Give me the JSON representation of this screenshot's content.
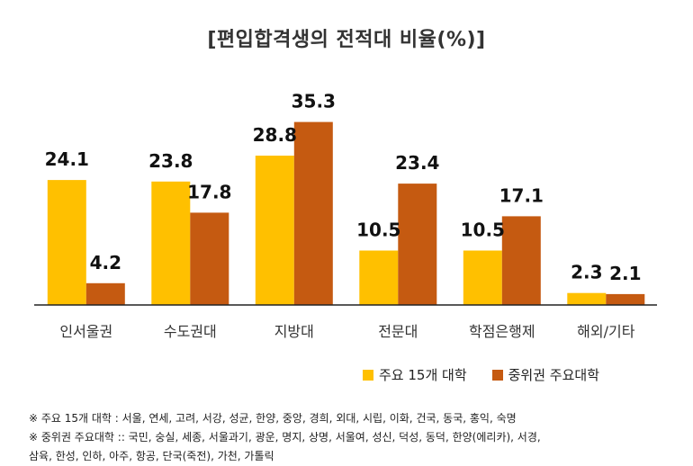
{
  "colors": {
    "series1": "#FFC000",
    "series2": "#C55A11",
    "axis": "#222222"
  },
  "chart_data": {
    "type": "bar",
    "title": "[편입합격생의 전적대 비율(%)]",
    "categories": [
      "인서울권",
      "수도권대",
      "지방대",
      "전문대",
      "학점은행제",
      "해외/기타"
    ],
    "series": [
      {
        "name": "주요 15개 대학",
        "values": [
          24.1,
          23.8,
          28.8,
          10.5,
          10.5,
          2.3
        ]
      },
      {
        "name": "중위권 주요대학",
        "values": [
          4.2,
          17.8,
          35.3,
          23.4,
          17.1,
          2.1
        ]
      }
    ],
    "ylim": [
      0,
      38
    ],
    "grid": false,
    "legend_position": "bottom-right",
    "data_labels": true
  },
  "notes": [
    "※ 주요 15개 대학 : 서울, 연세, 고려, 서강, 성균, 한양, 중앙, 경희, 외대, 시립, 이화, 건국, 동국, 홍익, 숙명",
    "※ 중위권 주요대학 :: 국민, 숭실, 세종, 서울과기, 광운, 명지, 상명, 서울여, 성신, 덕성, 동덕, 한양(에리카), 서경,",
    "삼육, 한성, 인하, 아주, 항공, 단국(죽전), 가천, 가톨릭"
  ]
}
